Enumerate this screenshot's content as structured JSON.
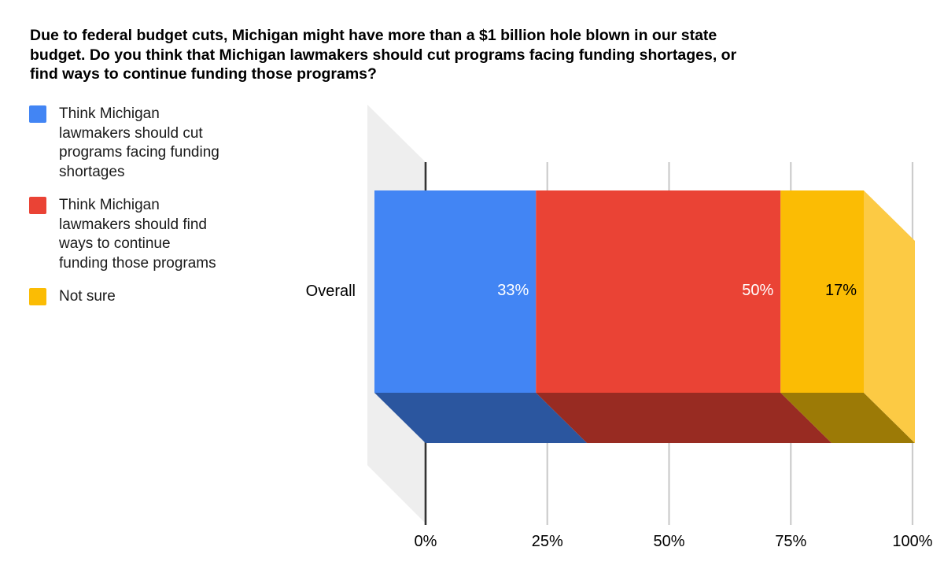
{
  "title": {
    "lines": [
      "Due to federal budget cuts, Michigan might have more than a $1 billion hole blown in our state",
      "budget. Do you think that Michigan lawmakers should cut programs facing funding shortages, or",
      "find ways to continue funding those programs?"
    ]
  },
  "legend": {
    "position": "left",
    "items": [
      {
        "lines": [
          "Think Michigan",
          "lawmakers should cut",
          "programs facing funding",
          "shortages"
        ],
        "color": "#4285f4"
      },
      {
        "lines": [
          "Think Michigan",
          "lawmakers should find",
          "ways to continue",
          "funding those programs"
        ],
        "color": "#ea4335"
      },
      {
        "lines": [
          "Not sure"
        ],
        "color": "#fbbc04"
      }
    ]
  },
  "chart_data": {
    "type": "bar",
    "orientation": "horizontal",
    "stacked": true,
    "effect": "3d",
    "categories": [
      "Overall"
    ],
    "series": [
      {
        "name": "Think Michigan lawmakers should cut programs facing funding shortages",
        "values": [
          33
        ],
        "label": "33%",
        "color": "#4285f4",
        "shade_color": "#2b569f",
        "label_color": "#ffffff"
      },
      {
        "name": "Think Michigan lawmakers should find ways to continue funding those programs",
        "values": [
          50
        ],
        "label": "50%",
        "color": "#ea4335",
        "shade_color": "#982b22",
        "label_color": "#ffffff"
      },
      {
        "name": "Not sure",
        "values": [
          17
        ],
        "label": "17%",
        "color": "#fbbc04",
        "shade_color": "#9c7a06",
        "side_color": "#fcca44",
        "label_color": "#000000"
      }
    ],
    "xaxis": {
      "ticks": [
        "0%",
        "25%",
        "50%",
        "75%",
        "100%"
      ],
      "tick_values": [
        0,
        25,
        50,
        75,
        100
      ],
      "range": [
        0,
        100
      ]
    },
    "grid": true,
    "grid_color": "#cccccc",
    "axis_line_color": "#333333",
    "wall_color": "#eeeeee",
    "background": "#ffffff"
  }
}
